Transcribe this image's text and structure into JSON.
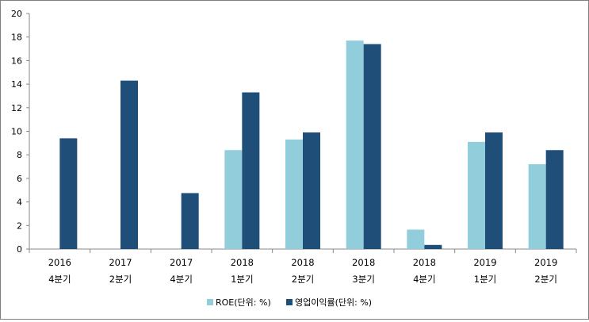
{
  "chart_data": {
    "type": "bar",
    "categories": [
      [
        "2016",
        "4분기"
      ],
      [
        "2017",
        "2분기"
      ],
      [
        "2017",
        "4분기"
      ],
      [
        "2018",
        "1분기"
      ],
      [
        "2018",
        "2분기"
      ],
      [
        "2018",
        "3분기"
      ],
      [
        "2018",
        "4분기"
      ],
      [
        "2019",
        "1분기"
      ],
      [
        "2019",
        "2분기"
      ]
    ],
    "series": [
      {
        "name": "ROE(단위: %)",
        "color": "#92cddc",
        "values": [
          null,
          null,
          null,
          8.4,
          9.3,
          17.7,
          1.65,
          9.1,
          7.2
        ]
      },
      {
        "name": "영업이익률(단위: %)",
        "color": "#1f4e79",
        "values": [
          9.4,
          14.3,
          4.75,
          13.3,
          9.9,
          17.4,
          0.35,
          9.9,
          8.4
        ]
      }
    ],
    "ylim": [
      0,
      20
    ],
    "yticks": [
      0,
      2,
      4,
      6,
      8,
      10,
      12,
      14,
      16,
      18,
      20
    ],
    "title": "",
    "xlabel": "",
    "ylabel": "",
    "grid": false,
    "legend_position": "bottom"
  }
}
